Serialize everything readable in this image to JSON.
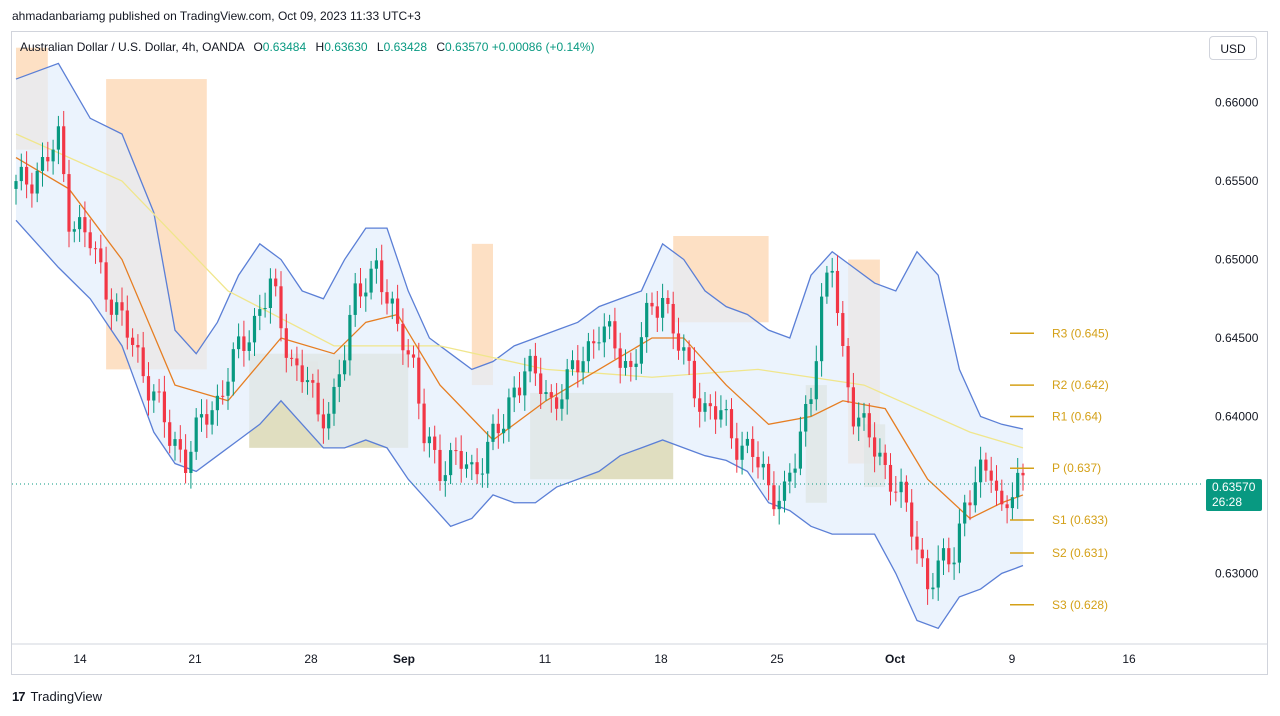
{
  "header": {
    "published_line": "ahmadanbariamg published on TradingView.com, Oct 09, 2023 11:33 UTC+3"
  },
  "legend": {
    "symbol": "Australian Dollar / U.S. Dollar, 4h, OANDA",
    "o_label": "O",
    "o_value": "0.63484",
    "h_label": "H",
    "h_value": "0.63630",
    "l_label": "L",
    "l_value": "0.63428",
    "c_label": "C",
    "c_value": "0.63570",
    "change": "+0.00086 (+0.14%)"
  },
  "currency_button": "USD",
  "price_tag": {
    "price": "0.63570",
    "countdown": "26:28"
  },
  "footer": {
    "logo": "17",
    "brand": "TradingView"
  },
  "colors": {
    "up": "#089981",
    "down": "#f23645",
    "band": "#5b7fd6",
    "band_fill": "#e3eefc",
    "ema_fast": "#e67e22",
    "ema_slow": "#f0e68c",
    "supply": "#fcd6b0",
    "demand": "#d8d6b0",
    "pivot": "#d4a017"
  },
  "chart_data": {
    "type": "candlestick",
    "title": "Australian Dollar / U.S. Dollar, 4h, OANDA",
    "yaxis": {
      "ticks": [
        "0.66000",
        "0.65500",
        "0.65000",
        "0.64500",
        "0.64000",
        "0.63000"
      ],
      "range": [
        0.6255,
        0.6645
      ]
    },
    "xaxis": {
      "ticks": [
        "14",
        "21",
        "28",
        "Sep",
        "11",
        "18",
        "25",
        "Oct",
        "9",
        "16"
      ]
    },
    "close_path": [
      [
        0,
        0.6545
      ],
      [
        5,
        0.656
      ],
      [
        8,
        0.6575
      ],
      [
        10,
        0.653
      ],
      [
        14,
        0.651
      ],
      [
        18,
        0.6475
      ],
      [
        22,
        0.6445
      ],
      [
        26,
        0.6415
      ],
      [
        29,
        0.6385
      ],
      [
        32,
        0.6375
      ],
      [
        35,
        0.6395
      ],
      [
        38,
        0.641
      ],
      [
        40,
        0.643
      ],
      [
        43,
        0.6445
      ],
      [
        46,
        0.647
      ],
      [
        48,
        0.6485
      ],
      [
        50,
        0.6455
      ],
      [
        53,
        0.643
      ],
      [
        55,
        0.6425
      ],
      [
        57,
        0.6395
      ],
      [
        60,
        0.6415
      ],
      [
        62,
        0.644
      ],
      [
        64,
        0.6475
      ],
      [
        66,
        0.649
      ],
      [
        68,
        0.6495
      ],
      [
        70,
        0.647
      ],
      [
        73,
        0.6455
      ],
      [
        75,
        0.643
      ],
      [
        77,
        0.6385
      ],
      [
        80,
        0.637
      ],
      [
        83,
        0.6372
      ],
      [
        86,
        0.6365
      ],
      [
        89,
        0.638
      ],
      [
        92,
        0.6395
      ],
      [
        94,
        0.642
      ],
      [
        96,
        0.643
      ],
      [
        99,
        0.642
      ],
      [
        101,
        0.641
      ],
      [
        104,
        0.642
      ],
      [
        107,
        0.644
      ],
      [
        110,
        0.6455
      ],
      [
        113,
        0.6445
      ],
      [
        116,
        0.643
      ],
      [
        119,
        0.646
      ],
      [
        122,
        0.648
      ],
      [
        124,
        0.6455
      ],
      [
        126,
        0.6435
      ],
      [
        128,
        0.642
      ],
      [
        130,
        0.6405
      ],
      [
        133,
        0.64
      ],
      [
        136,
        0.6385
      ],
      [
        139,
        0.6375
      ],
      [
        142,
        0.6355
      ],
      [
        145,
        0.635
      ],
      [
        147,
        0.637
      ],
      [
        150,
        0.642
      ],
      [
        152,
        0.647
      ],
      [
        154,
        0.6495
      ],
      [
        156,
        0.644
      ],
      [
        158,
        0.6405
      ],
      [
        160,
        0.639
      ],
      [
        163,
        0.6375
      ],
      [
        166,
        0.6355
      ],
      [
        169,
        0.633
      ],
      [
        172,
        0.6295
      ],
      [
        174,
        0.63
      ],
      [
        177,
        0.6315
      ],
      [
        179,
        0.6345
      ],
      [
        182,
        0.636
      ],
      [
        184,
        0.637
      ],
      [
        186,
        0.634
      ],
      [
        188,
        0.635
      ],
      [
        190,
        0.6357
      ]
    ],
    "upper_band": [
      [
        0,
        0.6615
      ],
      [
        8,
        0.6625
      ],
      [
        14,
        0.659
      ],
      [
        20,
        0.658
      ],
      [
        26,
        0.653
      ],
      [
        30,
        0.6455
      ],
      [
        34,
        0.644
      ],
      [
        38,
        0.646
      ],
      [
        42,
        0.649
      ],
      [
        46,
        0.651
      ],
      [
        50,
        0.65
      ],
      [
        54,
        0.648
      ],
      [
        58,
        0.6475
      ],
      [
        62,
        0.65
      ],
      [
        66,
        0.652
      ],
      [
        70,
        0.652
      ],
      [
        74,
        0.648
      ],
      [
        78,
        0.645
      ],
      [
        82,
        0.644
      ],
      [
        86,
        0.643
      ],
      [
        90,
        0.6435
      ],
      [
        94,
        0.6445
      ],
      [
        98,
        0.645
      ],
      [
        102,
        0.6455
      ],
      [
        106,
        0.646
      ],
      [
        110,
        0.647
      ],
      [
        114,
        0.6475
      ],
      [
        118,
        0.648
      ],
      [
        122,
        0.651
      ],
      [
        126,
        0.65
      ],
      [
        130,
        0.648
      ],
      [
        134,
        0.647
      ],
      [
        138,
        0.6465
      ],
      [
        142,
        0.6455
      ],
      [
        146,
        0.645
      ],
      [
        150,
        0.649
      ],
      [
        154,
        0.6505
      ],
      [
        158,
        0.6495
      ],
      [
        162,
        0.6485
      ],
      [
        166,
        0.648
      ],
      [
        170,
        0.6505
      ],
      [
        174,
        0.649
      ],
      [
        178,
        0.643
      ],
      [
        182,
        0.64
      ],
      [
        186,
        0.6395
      ],
      [
        190,
        0.6392
      ]
    ],
    "lower_band": [
      [
        0,
        0.6525
      ],
      [
        8,
        0.6495
      ],
      [
        14,
        0.6475
      ],
      [
        20,
        0.6445
      ],
      [
        26,
        0.639
      ],
      [
        30,
        0.637
      ],
      [
        34,
        0.6365
      ],
      [
        38,
        0.6375
      ],
      [
        42,
        0.6385
      ],
      [
        46,
        0.6395
      ],
      [
        50,
        0.641
      ],
      [
        54,
        0.6395
      ],
      [
        58,
        0.638
      ],
      [
        62,
        0.638
      ],
      [
        66,
        0.6385
      ],
      [
        70,
        0.638
      ],
      [
        74,
        0.636
      ],
      [
        78,
        0.6345
      ],
      [
        82,
        0.633
      ],
      [
        86,
        0.6335
      ],
      [
        90,
        0.635
      ],
      [
        94,
        0.6345
      ],
      [
        98,
        0.6345
      ],
      [
        102,
        0.6355
      ],
      [
        106,
        0.636
      ],
      [
        110,
        0.6365
      ],
      [
        114,
        0.6375
      ],
      [
        118,
        0.638
      ],
      [
        122,
        0.6385
      ],
      [
        126,
        0.638
      ],
      [
        130,
        0.6375
      ],
      [
        134,
        0.6372
      ],
      [
        138,
        0.6365
      ],
      [
        142,
        0.6345
      ],
      [
        146,
        0.634
      ],
      [
        150,
        0.633
      ],
      [
        154,
        0.6325
      ],
      [
        158,
        0.6325
      ],
      [
        162,
        0.6325
      ],
      [
        166,
        0.63
      ],
      [
        170,
        0.627
      ],
      [
        174,
        0.6265
      ],
      [
        178,
        0.6285
      ],
      [
        182,
        0.629
      ],
      [
        186,
        0.63
      ],
      [
        190,
        0.6305
      ]
    ],
    "ema_fast": [
      [
        0,
        0.6565
      ],
      [
        10,
        0.6545
      ],
      [
        20,
        0.65
      ],
      [
        30,
        0.642
      ],
      [
        40,
        0.641
      ],
      [
        50,
        0.645
      ],
      [
        60,
        0.644
      ],
      [
        66,
        0.646
      ],
      [
        72,
        0.6465
      ],
      [
        80,
        0.642
      ],
      [
        90,
        0.6385
      ],
      [
        100,
        0.641
      ],
      [
        110,
        0.643
      ],
      [
        120,
        0.645
      ],
      [
        126,
        0.645
      ],
      [
        134,
        0.642
      ],
      [
        142,
        0.6395
      ],
      [
        150,
        0.64
      ],
      [
        156,
        0.641
      ],
      [
        164,
        0.6405
      ],
      [
        172,
        0.636
      ],
      [
        180,
        0.6335
      ],
      [
        186,
        0.6345
      ],
      [
        190,
        0.635
      ]
    ],
    "ema_slow": [
      [
        0,
        0.658
      ],
      [
        20,
        0.655
      ],
      [
        40,
        0.648
      ],
      [
        60,
        0.6445
      ],
      [
        80,
        0.6445
      ],
      [
        100,
        0.643
      ],
      [
        120,
        0.6425
      ],
      [
        140,
        0.643
      ],
      [
        160,
        0.642
      ],
      [
        180,
        0.639
      ],
      [
        190,
        0.638
      ]
    ],
    "supply_zones": [
      [
        0,
        6,
        0.6635,
        0.657
      ],
      [
        17,
        36,
        0.6615,
        0.643
      ],
      [
        55,
        57,
        0.6435,
        0.641
      ],
      [
        86,
        90,
        0.651,
        0.642
      ],
      [
        124,
        142,
        0.6515,
        0.646
      ],
      [
        157,
        163,
        0.65,
        0.637
      ]
    ],
    "demand_zones": [
      [
        44,
        74,
        0.644,
        0.638
      ],
      [
        97,
        124,
        0.6415,
        0.636
      ],
      [
        149,
        153,
        0.642,
        0.6345
      ],
      [
        160,
        164,
        0.6395,
        0.6355
      ]
    ],
    "pivots": [
      {
        "label": "R3",
        "value": "0.645",
        "price": 0.6453
      },
      {
        "label": "R2",
        "value": "0.642",
        "price": 0.642
      },
      {
        "label": "R1",
        "value": "0.64",
        "price": 0.64
      },
      {
        "label": "P",
        "value": "0.637",
        "price": 0.6367
      },
      {
        "label": "S1",
        "value": "0.633",
        "price": 0.6334
      },
      {
        "label": "S2",
        "value": "0.631",
        "price": 0.6313
      },
      {
        "label": "S3",
        "value": "0.628",
        "price": 0.628
      }
    ],
    "last_price": 0.6357
  }
}
